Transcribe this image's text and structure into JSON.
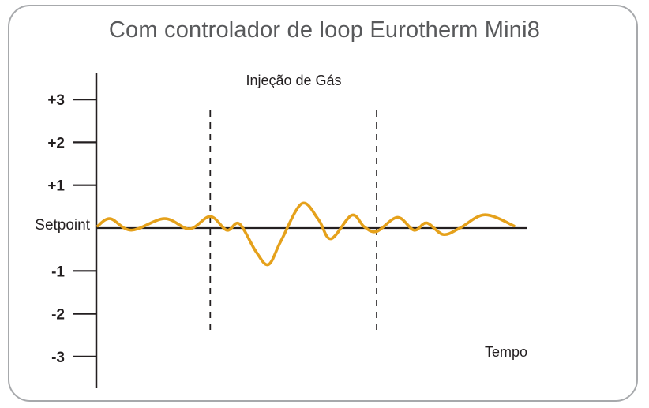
{
  "chart_data": {
    "type": "line",
    "title": "Com controlador de loop Eurotherm Mini8",
    "xlabel": "Tempo",
    "ylabel": "",
    "ylim": [
      -3.6,
      3.6
    ],
    "y_ticks": [
      {
        "value": 3,
        "label": "+3"
      },
      {
        "value": 2,
        "label": "+2"
      },
      {
        "value": 1,
        "label": "+1"
      },
      {
        "value": 0,
        "label": "Setpoint"
      },
      {
        "value": -1,
        "label": "-1"
      },
      {
        "value": -2,
        "label": "-2"
      },
      {
        "value": -3,
        "label": "-3"
      }
    ],
    "annotation": "Injeção de Gás",
    "injection_window": {
      "start": 0.27,
      "end": 0.67
    },
    "series": [
      {
        "color": "#e5a11b",
        "x": [
          0.0,
          0.03,
          0.08,
          0.16,
          0.22,
          0.27,
          0.31,
          0.34,
          0.38,
          0.41,
          0.44,
          0.49,
          0.53,
          0.56,
          0.61,
          0.64,
          0.67,
          0.72,
          0.76,
          0.79,
          0.83,
          0.87,
          0.93,
          1.0
        ],
        "y": [
          0.05,
          0.22,
          -0.05,
          0.22,
          -0.02,
          0.27,
          -0.05,
          0.1,
          -0.55,
          -0.85,
          -0.3,
          0.57,
          0.2,
          -0.25,
          0.3,
          0.03,
          -0.08,
          0.25,
          -0.05,
          0.12,
          -0.15,
          0.0,
          0.31,
          0.05
        ]
      }
    ],
    "grid": false
  }
}
